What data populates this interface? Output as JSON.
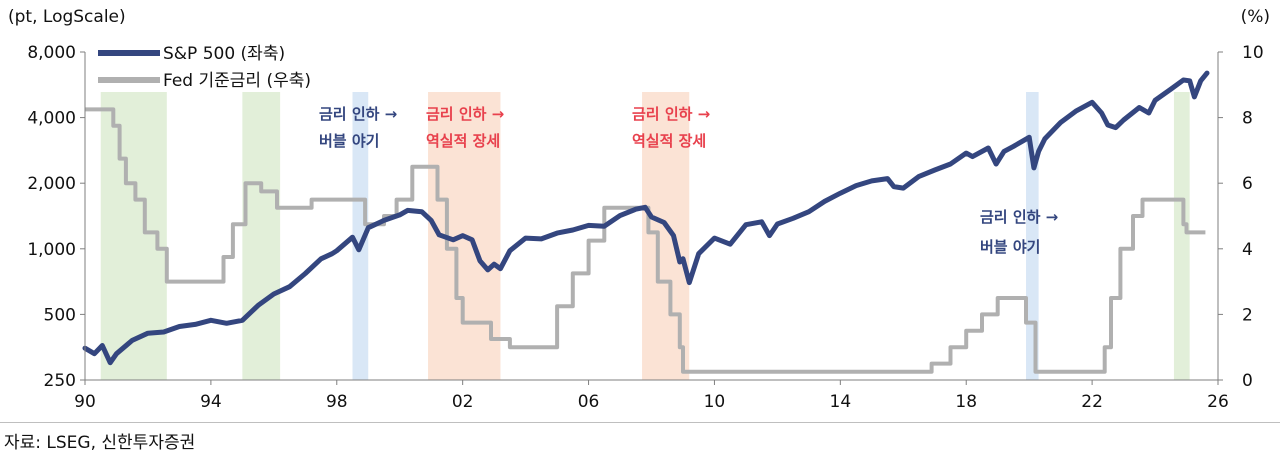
{
  "chart_data": {
    "type": "line",
    "left_axis": {
      "unit_label": "(pt, LogScale)",
      "scale": "log",
      "range": [
        250,
        8000
      ],
      "ticks": [
        250,
        500,
        1000,
        2000,
        4000,
        8000
      ],
      "tick_labels": [
        "250",
        "500",
        "1,000",
        "2,000",
        "4,000",
        "8,000"
      ]
    },
    "right_axis": {
      "unit_label": "(%)",
      "range": [
        0,
        10
      ],
      "ticks": [
        0,
        2,
        4,
        6,
        8,
        10
      ],
      "tick_labels": [
        "0",
        "2",
        "4",
        "6",
        "8",
        "10"
      ]
    },
    "x_axis": {
      "range": [
        1990,
        2026
      ],
      "ticks": [
        1990,
        1994,
        1998,
        2002,
        2006,
        2010,
        2014,
        2018,
        2022,
        2026
      ],
      "tick_labels": [
        "90",
        "94",
        "98",
        "02",
        "06",
        "10",
        "14",
        "18",
        "22",
        "26"
      ]
    },
    "grid": false,
    "legend_position": "top-left",
    "series": [
      {
        "name": "S&P 500 (좌축)",
        "axis": "left",
        "color": "#34467f",
        "points": [
          [
            1990.0,
            350
          ],
          [
            1990.3,
            330
          ],
          [
            1990.55,
            360
          ],
          [
            1990.8,
            300
          ],
          [
            1991.0,
            330
          ],
          [
            1991.5,
            380
          ],
          [
            1992.0,
            410
          ],
          [
            1992.5,
            415
          ],
          [
            1993.0,
            440
          ],
          [
            1993.5,
            450
          ],
          [
            1994.0,
            470
          ],
          [
            1994.5,
            455
          ],
          [
            1995.0,
            470
          ],
          [
            1995.5,
            550
          ],
          [
            1996.0,
            620
          ],
          [
            1996.5,
            670
          ],
          [
            1997.0,
            770
          ],
          [
            1997.5,
            900
          ],
          [
            1997.85,
            950
          ],
          [
            1998.0,
            980
          ],
          [
            1998.5,
            1130
          ],
          [
            1998.7,
            990
          ],
          [
            1999.0,
            1250
          ],
          [
            1999.5,
            1350
          ],
          [
            2000.0,
            1430
          ],
          [
            2000.25,
            1500
          ],
          [
            2000.7,
            1480
          ],
          [
            2001.0,
            1350
          ],
          [
            2001.25,
            1160
          ],
          [
            2001.7,
            1100
          ],
          [
            2002.0,
            1150
          ],
          [
            2002.3,
            1100
          ],
          [
            2002.55,
            880
          ],
          [
            2002.8,
            800
          ],
          [
            2003.0,
            850
          ],
          [
            2003.2,
            810
          ],
          [
            2003.5,
            980
          ],
          [
            2004.0,
            1120
          ],
          [
            2004.5,
            1110
          ],
          [
            2005.0,
            1180
          ],
          [
            2005.5,
            1220
          ],
          [
            2006.0,
            1280
          ],
          [
            2006.5,
            1270
          ],
          [
            2007.0,
            1420
          ],
          [
            2007.5,
            1520
          ],
          [
            2007.8,
            1550
          ],
          [
            2008.0,
            1400
          ],
          [
            2008.4,
            1320
          ],
          [
            2008.7,
            1150
          ],
          [
            2008.9,
            870
          ],
          [
            2009.0,
            900
          ],
          [
            2009.2,
            700
          ],
          [
            2009.5,
            950
          ],
          [
            2010.0,
            1120
          ],
          [
            2010.5,
            1050
          ],
          [
            2011.0,
            1290
          ],
          [
            2011.5,
            1330
          ],
          [
            2011.75,
            1150
          ],
          [
            2012.0,
            1300
          ],
          [
            2012.5,
            1380
          ],
          [
            2013.0,
            1480
          ],
          [
            2013.5,
            1650
          ],
          [
            2014.0,
            1800
          ],
          [
            2014.5,
            1950
          ],
          [
            2015.0,
            2050
          ],
          [
            2015.5,
            2100
          ],
          [
            2015.7,
            1930
          ],
          [
            2016.0,
            1900
          ],
          [
            2016.5,
            2150
          ],
          [
            2017.0,
            2300
          ],
          [
            2017.5,
            2450
          ],
          [
            2018.0,
            2750
          ],
          [
            2018.2,
            2650
          ],
          [
            2018.7,
            2900
          ],
          [
            2018.95,
            2450
          ],
          [
            2019.2,
            2800
          ],
          [
            2019.5,
            2950
          ],
          [
            2020.0,
            3250
          ],
          [
            2020.15,
            2350
          ],
          [
            2020.3,
            2800
          ],
          [
            2020.5,
            3200
          ],
          [
            2021.0,
            3800
          ],
          [
            2021.5,
            4300
          ],
          [
            2022.0,
            4700
          ],
          [
            2022.3,
            4200
          ],
          [
            2022.5,
            3700
          ],
          [
            2022.75,
            3600
          ],
          [
            2023.0,
            3900
          ],
          [
            2023.5,
            4450
          ],
          [
            2023.8,
            4200
          ],
          [
            2024.0,
            4800
          ],
          [
            2024.5,
            5400
          ],
          [
            2024.9,
            5950
          ],
          [
            2025.1,
            5900
          ],
          [
            2025.25,
            4980
          ],
          [
            2025.45,
            5900
          ],
          [
            2025.65,
            6400
          ]
        ]
      },
      {
        "name": "Fed 기준금리 (우축)",
        "axis": "right",
        "color": "#b0b0b0",
        "points": [
          [
            1990.0,
            8.25
          ],
          [
            1990.7,
            8.25
          ],
          [
            1990.9,
            7.75
          ],
          [
            1991.1,
            6.75
          ],
          [
            1991.3,
            6.0
          ],
          [
            1991.6,
            5.5
          ],
          [
            1991.9,
            4.5
          ],
          [
            1992.3,
            4.0
          ],
          [
            1992.6,
            3.0
          ],
          [
            1994.1,
            3.0
          ],
          [
            1994.4,
            3.75
          ],
          [
            1994.7,
            4.75
          ],
          [
            1995.1,
            6.0
          ],
          [
            1995.6,
            5.75
          ],
          [
            1996.1,
            5.25
          ],
          [
            1997.2,
            5.5
          ],
          [
            1998.7,
            5.5
          ],
          [
            1998.9,
            4.75
          ],
          [
            1999.5,
            5.0
          ],
          [
            1999.9,
            5.5
          ],
          [
            2000.4,
            6.5
          ],
          [
            2001.0,
            6.5
          ],
          [
            2001.2,
            5.5
          ],
          [
            2001.5,
            4.0
          ],
          [
            2001.8,
            2.5
          ],
          [
            2002.0,
            1.75
          ],
          [
            2002.9,
            1.25
          ],
          [
            2003.5,
            1.0
          ],
          [
            2004.4,
            1.0
          ],
          [
            2005.0,
            2.25
          ],
          [
            2005.5,
            3.25
          ],
          [
            2006.0,
            4.25
          ],
          [
            2006.5,
            5.25
          ],
          [
            2007.6,
            5.25
          ],
          [
            2007.9,
            4.5
          ],
          [
            2008.2,
            3.0
          ],
          [
            2008.6,
            2.0
          ],
          [
            2008.9,
            1.0
          ],
          [
            2009.0,
            0.25
          ],
          [
            2015.9,
            0.25
          ],
          [
            2016.9,
            0.5
          ],
          [
            2017.5,
            1.0
          ],
          [
            2018.0,
            1.5
          ],
          [
            2018.5,
            2.0
          ],
          [
            2019.0,
            2.5
          ],
          [
            2019.5,
            2.5
          ],
          [
            2019.9,
            1.75
          ],
          [
            2020.2,
            0.25
          ],
          [
            2022.15,
            0.25
          ],
          [
            2022.4,
            1.0
          ],
          [
            2022.6,
            2.5
          ],
          [
            2022.9,
            4.0
          ],
          [
            2023.3,
            5.0
          ],
          [
            2023.6,
            5.5
          ],
          [
            2024.7,
            5.5
          ],
          [
            2024.9,
            4.75
          ],
          [
            2025.0,
            4.5
          ],
          [
            2025.6,
            4.5
          ]
        ]
      }
    ],
    "shaded_periods": [
      {
        "start": 1990.5,
        "end": 1992.6,
        "color": "#e2efd9"
      },
      {
        "start": 1995.0,
        "end": 1996.2,
        "color": "#e2efd9"
      },
      {
        "start": 1998.5,
        "end": 1999.0,
        "color": "#d9e7f6"
      },
      {
        "start": 2000.9,
        "end": 2003.2,
        "color": "#fbe3d5"
      },
      {
        "start": 2007.7,
        "end": 2009.2,
        "color": "#fbe3d5"
      },
      {
        "start": 2019.9,
        "end": 2020.3,
        "color": "#d9e7f6"
      },
      {
        "start": 2024.6,
        "end": 2025.1,
        "color": "#e2efd9"
      }
    ],
    "annotations": [
      {
        "id": "anno-1998",
        "lines": [
          "금리 인하 →",
          "버블 야기"
        ],
        "color": "#34467f"
      },
      {
        "id": "anno-2001",
        "lines": [
          "금리 인하 →",
          "역실적 장세"
        ],
        "color": "#e8414d"
      },
      {
        "id": "anno-2007",
        "lines": [
          "금리 인하 →",
          "역실적 장세"
        ],
        "color": "#e8414d"
      },
      {
        "id": "anno-2019",
        "lines": [
          "금리 인하 →",
          "버블 야기"
        ],
        "color": "#34467f"
      }
    ]
  },
  "source": "자료: LSEG, 신한투자증권"
}
